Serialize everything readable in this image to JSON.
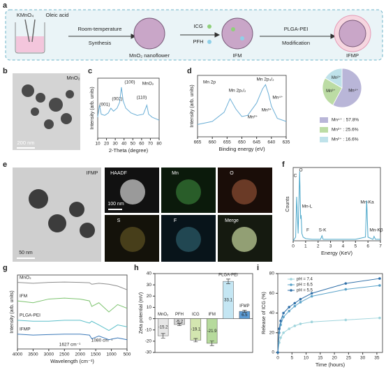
{
  "figure": {
    "panel_labels": [
      "a",
      "b",
      "c",
      "d",
      "e",
      "f",
      "g",
      "h",
      "i"
    ],
    "scheme": [
      "KMnO₄",
      "Oleic acid",
      "Room-temperature",
      "Synthesis",
      "MnO₂ nanoflower",
      "ICG",
      "PFH",
      "IFM",
      "PLGA-PEI",
      "Modification",
      "IFMP"
    ],
    "tem_b": [
      "MnO₂",
      "200 nm"
    ],
    "tem_e": [
      "IFMP",
      "50 nm",
      "HAADF",
      "Mn",
      "O",
      "S",
      "F",
      "Merge",
      "100 nm"
    ]
  },
  "chart_data": [
    {
      "type": "line",
      "x_label": "2-Theta (degree)",
      "y_label": "Intensity (arb. units)",
      "x": [
        10,
        12,
        14,
        18,
        22,
        25,
        28,
        32,
        35,
        37,
        39,
        42,
        48,
        55,
        62,
        66,
        68,
        72,
        80
      ],
      "series": [
        {
          "color": "#6aaed6",
          "values": [
            0.35,
            0.55,
            0.4,
            0.38,
            0.42,
            0.5,
            0.45,
            0.5,
            0.6,
            0.85,
            0.62,
            0.5,
            0.42,
            0.38,
            0.4,
            0.55,
            0.4,
            0.35,
            0.3
          ]
        }
      ],
      "xlim": [
        10,
        80
      ],
      "xticks": [
        10,
        20,
        30,
        40,
        50,
        60,
        70,
        80
      ],
      "ylim": [
        0,
        1
      ],
      "annotations": [
        "(001)",
        "(002)",
        "(100)",
        "(110)",
        "MnO₂"
      ]
    },
    {
      "type": "line",
      "x_label": "Binding energy (eV)",
      "y_label": "Intensity (arb. units)",
      "x": [
        665,
        660,
        656,
        654,
        652,
        650,
        648,
        645,
        643,
        642,
        641,
        640,
        638,
        635
      ],
      "series": [
        {
          "color": "#6aaed6",
          "values": [
            0.2,
            0.25,
            0.4,
            0.62,
            0.45,
            0.33,
            0.35,
            0.55,
            0.78,
            0.85,
            0.7,
            0.5,
            0.3,
            0.25
          ]
        }
      ],
      "xlim": [
        665,
        635
      ],
      "xticks": [
        665,
        660,
        655,
        650,
        645,
        640,
        635
      ],
      "ylim": [
        0,
        1
      ],
      "annotations": [
        "Mn 2p",
        "Mn 2p₃/₂",
        "Mn 2p₁/₂",
        "Mn⁴⁺",
        "Mn³⁺",
        "Mn²⁺"
      ]
    },
    {
      "type": "pie",
      "categories": [
        "Mn⁴⁺",
        "Mn³⁺",
        "Mn²⁺"
      ],
      "values": [
        57.8,
        25.6,
        16.6
      ],
      "value_labels": [
        "Mn⁴⁺ : 57.8%",
        "Mn³⁺ : 25.6%",
        "Mn²⁺ : 16.6%"
      ],
      "colors": [
        "#b9b6d8",
        "#bcdca4",
        "#bfe2ea"
      ]
    },
    {
      "type": "line",
      "x_label": "Energy (KeV)",
      "y_label": "Counts",
      "x": [
        0,
        0.2,
        0.28,
        0.4,
        0.52,
        0.6,
        0.64,
        0.7,
        0.8,
        1.0,
        1.5,
        2.2,
        2.31,
        2.4,
        3,
        4,
        5,
        5.8,
        5.9,
        6.0,
        6.4,
        6.49,
        6.6,
        7
      ],
      "series": [
        {
          "color": "#4aa6c9",
          "values": [
            0,
            0.05,
            0.6,
            0.1,
            0.95,
            0.3,
            0.35,
            0.1,
            0.05,
            0.03,
            0.02,
            0.02,
            0.07,
            0.02,
            0.02,
            0.02,
            0.02,
            0.05,
            0.55,
            0.05,
            0.02,
            0.06,
            0.02,
            0.02
          ]
        }
      ],
      "xlim": [
        0,
        7
      ],
      "xticks": [
        0,
        1,
        2,
        3,
        4,
        5,
        6,
        7
      ],
      "ylim": [
        0,
        1
      ],
      "annotations": [
        "C",
        "O",
        "Mn-L",
        "F",
        "S-K",
        "Mn-Ka",
        "Mn-Kβ"
      ]
    },
    {
      "type": "line",
      "x_label": "Wavelength (cm⁻¹)",
      "y_label": "Intensity (arb. units)",
      "x": [
        4000,
        3500,
        3000,
        2500,
        2000,
        1700,
        1627,
        1400,
        1080,
        800,
        500
      ],
      "series": [
        {
          "name": "MnO₂",
          "color": "#8c8c8c",
          "values": [
            3.6,
            3.55,
            3.6,
            3.62,
            3.6,
            3.58,
            3.5,
            3.55,
            3.5,
            3.4,
            3.2
          ]
        },
        {
          "name": "IFM",
          "color": "#7cc36e",
          "values": [
            2.6,
            2.5,
            2.7,
            2.75,
            2.7,
            2.6,
            2.3,
            2.5,
            2.0,
            2.4,
            2.2
          ]
        },
        {
          "name": "PLGA-PEI",
          "color": "#5bbfc9",
          "values": [
            1.55,
            1.5,
            1.5,
            1.55,
            1.55,
            1.4,
            1.5,
            1.3,
            1.0,
            1.3,
            1.2
          ]
        },
        {
          "name": "IFMP",
          "color": "#3a78b8",
          "values": [
            0.8,
            0.75,
            0.78,
            0.8,
            0.8,
            0.75,
            0.55,
            0.7,
            0.5,
            0.6,
            0.5
          ]
        }
      ],
      "xlim": [
        4000,
        500
      ],
      "xticks": [
        4000,
        3500,
        3000,
        2500,
        2000,
        1500,
        1000,
        500
      ],
      "ylim": [
        0,
        4
      ],
      "annotations": [
        "1627 cm⁻¹",
        "1080 cm⁻¹"
      ]
    },
    {
      "type": "bar",
      "y_label": "Zeta potential (mV)",
      "categories": [
        "MnO₂",
        "PFH",
        "ICG",
        "IFM",
        "PLGA-PEI",
        "IFMP"
      ],
      "values": [
        -15.2,
        -5.2,
        -19.1,
        -21.9,
        33.1,
        6.5
      ],
      "errors": [
        2,
        1,
        1.5,
        2,
        2,
        1
      ],
      "colors": [
        "#e6e6e6",
        "#d6d6d6",
        "#d3e6b0",
        "#b6da9c",
        "#c4e6f3",
        "#5b9bd5"
      ],
      "ylim": [
        -30,
        40
      ],
      "yticks": [
        -30,
        -20,
        -10,
        0,
        10,
        20,
        30,
        40
      ]
    },
    {
      "type": "line",
      "x_label": "Time (hours)",
      "y_label": "Release of ICG (%)",
      "x": [
        0,
        0.5,
        1,
        2,
        4,
        6,
        8,
        12,
        24,
        36
      ],
      "series": [
        {
          "name": "pH = 7.4",
          "color": "#9fd4dc",
          "values": [
            0,
            10,
            15,
            20,
            24,
            27,
            29,
            31,
            33,
            35
          ]
        },
        {
          "name": "pH = 6.5",
          "color": "#5ba3c9",
          "values": [
            0,
            20,
            28,
            36,
            42,
            47,
            51,
            57,
            64,
            68
          ]
        },
        {
          "name": "pH = 5.5",
          "color": "#2f6fa8",
          "values": [
            0,
            24,
            32,
            40,
            46,
            50,
            54,
            60,
            70,
            75
          ]
        }
      ],
      "xlim": [
        0,
        37
      ],
      "xticks": [
        0,
        5,
        10,
        15,
        20,
        25,
        30,
        35
      ],
      "ylim": [
        0,
        80
      ],
      "yticks": [
        0,
        20,
        40,
        60,
        80
      ],
      "markers": true,
      "legend": "upper left"
    }
  ]
}
